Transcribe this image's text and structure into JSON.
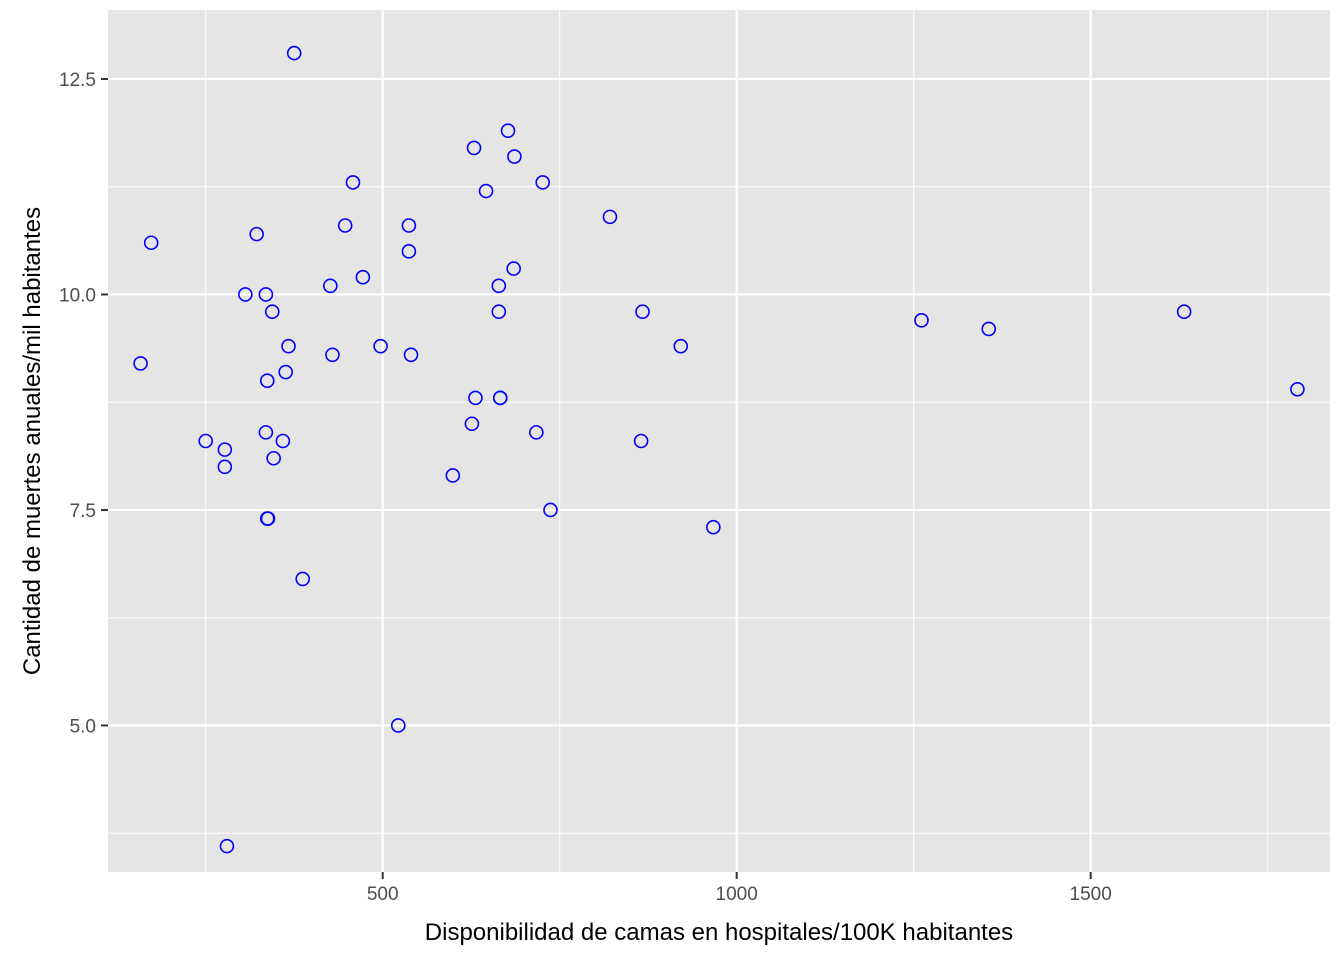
{
  "chart_data": {
    "type": "scatter",
    "title": "",
    "xlabel": "Disponibilidad de camas en hospitales/100K habitantes",
    "ylabel": "Cantidad de muertes anuales/mil habitantes",
    "xlim": [
      112,
      1838
    ],
    "ylim": [
      3.3,
      13.3
    ],
    "x_ticks": [
      500,
      1000,
      1500
    ],
    "x_tick_labels": [
      "500",
      "1000",
      "1500"
    ],
    "x_minor_ticks": [
      250,
      750,
      1250,
      1750
    ],
    "y_ticks": [
      5.0,
      7.5,
      10.0,
      12.5
    ],
    "y_tick_labels": [
      "5.0",
      "7.5",
      "10.0",
      "12.5"
    ],
    "y_minor_ticks": [
      3.75,
      6.25,
      8.75,
      11.25
    ],
    "grid": true,
    "colors": {
      "panel": "#e5e5e5",
      "grid": "#ffffff",
      "point": "#0000ff"
    },
    "series": [
      {
        "x": [
          375,
          158,
          173,
          322,
          306,
          335,
          344,
          367,
          363,
          337,
          250,
          277,
          277,
          335,
          359,
          346,
          337,
          338,
          387,
          280,
          426,
          429,
          447,
          458,
          472,
          497,
          537,
          537,
          540,
          522,
          599,
          626,
          629,
          631,
          646,
          664,
          664,
          666,
          666,
          677,
          685,
          686,
          717,
          726,
          737,
          821,
          865,
          867,
          921,
          967,
          1261,
          1356,
          1632,
          1792
        ],
        "y": [
          12.8,
          9.2,
          10.6,
          10.7,
          10.0,
          10.0,
          9.8,
          9.4,
          9.1,
          9.0,
          8.3,
          8.2,
          8.0,
          8.4,
          8.3,
          8.1,
          7.4,
          7.4,
          6.7,
          3.6,
          10.1,
          9.3,
          10.8,
          11.3,
          10.2,
          9.4,
          10.8,
          10.5,
          9.3,
          5.0,
          7.9,
          8.5,
          11.7,
          8.8,
          11.2,
          10.1,
          9.8,
          8.8,
          8.8,
          11.9,
          10.3,
          11.6,
          8.4,
          11.3,
          7.5,
          10.9,
          8.3,
          9.8,
          9.4,
          7.3,
          9.7,
          9.6,
          9.8,
          8.9
        ]
      }
    ]
  }
}
